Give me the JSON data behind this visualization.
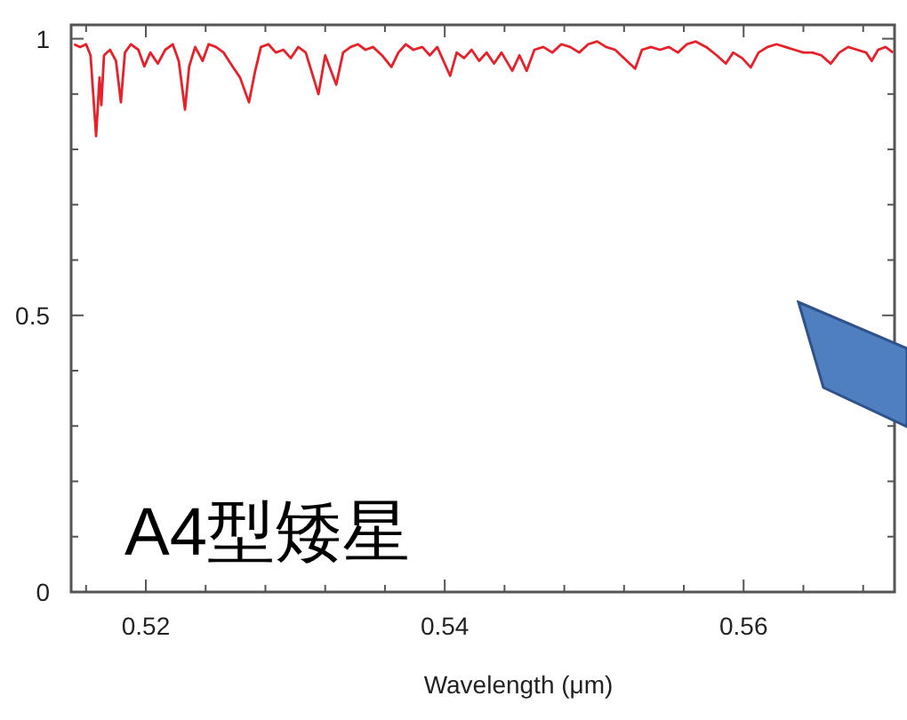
{
  "chart_data": {
    "type": "line",
    "xlabel": "Wavelength (μm)",
    "annotations": [
      "A4型矮星"
    ],
    "xlim": [
      0.515,
      0.5701
    ],
    "ylim": [
      0,
      1.025
    ],
    "xticks": [
      {
        "value": 0.516,
        "label": null
      },
      0.52,
      {
        "value": 0.524,
        "label": null
      },
      {
        "value": 0.528,
        "label": null
      },
      {
        "value": 0.532,
        "label": null
      },
      {
        "value": 0.536,
        "label": null
      },
      0.54,
      {
        "value": 0.544,
        "label": null
      },
      {
        "value": 0.548,
        "label": null
      },
      {
        "value": 0.552,
        "label": null
      },
      {
        "value": 0.556,
        "label": null
      },
      0.56,
      {
        "value": 0.564,
        "label": null
      },
      {
        "value": 0.568,
        "label": null
      }
    ],
    "yticks": [
      0,
      {
        "value": 0.1,
        "label": null
      },
      {
        "value": 0.2,
        "label": null
      },
      {
        "value": 0.3,
        "label": null
      },
      {
        "value": 0.4,
        "label": null
      },
      0.5,
      {
        "value": 0.6,
        "label": null
      },
      {
        "value": 0.7,
        "label": null
      },
      {
        "value": 0.8,
        "label": null
      },
      {
        "value": 0.9,
        "label": null
      },
      1
    ],
    "marker": "none",
    "line_style": "solid",
    "series": [
      {
        "color": "#e8202a",
        "x": [
          0.5152,
          0.5156,
          0.516,
          0.5163,
          0.51667,
          0.5169,
          0.51702,
          0.5172,
          0.5176,
          0.518,
          0.51833,
          0.5186,
          0.519,
          0.5195,
          0.5199,
          0.5203,
          0.5208,
          0.5213,
          0.5218,
          0.5222,
          0.52262,
          0.5229,
          0.5233,
          0.5238,
          0.5242,
          0.5247,
          0.5252,
          0.5258,
          0.5263,
          0.5269,
          0.5273,
          0.5277,
          0.5282,
          0.5287,
          0.5292,
          0.5297,
          0.5302,
          0.5307,
          0.53155,
          0.532,
          0.53274,
          0.5332,
          0.5337,
          0.5342,
          0.5347,
          0.5352,
          0.5358,
          0.53643,
          0.5369,
          0.5374,
          0.5379,
          0.5385,
          0.539,
          0.5395,
          0.54036,
          0.5408,
          0.5413,
          0.5418,
          0.5423,
          0.5428,
          0.5433,
          0.5438,
          0.54452,
          0.545,
          0.54548,
          0.546,
          0.5466,
          0.5472,
          0.5478,
          0.5484,
          0.549,
          0.5496,
          0.5502,
          0.5508,
          0.5514,
          0.55274,
          0.5532,
          0.5538,
          0.5544,
          0.555,
          0.5556,
          0.5562,
          0.5568,
          0.5575,
          0.5582,
          0.55881,
          0.5593,
          0.5599,
          0.56048,
          0.561,
          0.5616,
          0.5622,
          0.5628,
          0.5634,
          0.564,
          0.5646,
          0.5652,
          0.56583,
          0.5664,
          0.567,
          0.5676,
          0.5682,
          0.56857,
          0.569,
          0.5695,
          0.57
        ],
        "values": [
          0.99,
          0.985,
          0.99,
          0.97,
          0.824,
          0.93,
          0.88,
          0.97,
          0.98,
          0.96,
          0.885,
          0.975,
          0.99,
          0.98,
          0.95,
          0.975,
          0.955,
          0.98,
          0.99,
          0.96,
          0.872,
          0.95,
          0.985,
          0.96,
          0.99,
          0.985,
          0.975,
          0.95,
          0.93,
          0.885,
          0.94,
          0.985,
          0.99,
          0.975,
          0.98,
          0.965,
          0.985,
          0.975,
          0.9,
          0.97,
          0.917,
          0.975,
          0.985,
          0.99,
          0.98,
          0.985,
          0.97,
          0.949,
          0.975,
          0.99,
          0.98,
          0.985,
          0.97,
          0.985,
          0.933,
          0.975,
          0.965,
          0.98,
          0.96,
          0.975,
          0.955,
          0.975,
          0.942,
          0.97,
          0.942,
          0.98,
          0.985,
          0.975,
          0.99,
          0.985,
          0.975,
          0.99,
          0.995,
          0.985,
          0.98,
          0.946,
          0.98,
          0.985,
          0.98,
          0.985,
          0.975,
          0.99,
          0.995,
          0.985,
          0.97,
          0.955,
          0.975,
          0.965,
          0.948,
          0.975,
          0.985,
          0.99,
          0.985,
          0.98,
          0.975,
          0.975,
          0.97,
          0.955,
          0.975,
          0.985,
          0.98,
          0.975,
          0.96,
          0.98,
          0.985,
          0.975
        ]
      }
    ]
  }
}
